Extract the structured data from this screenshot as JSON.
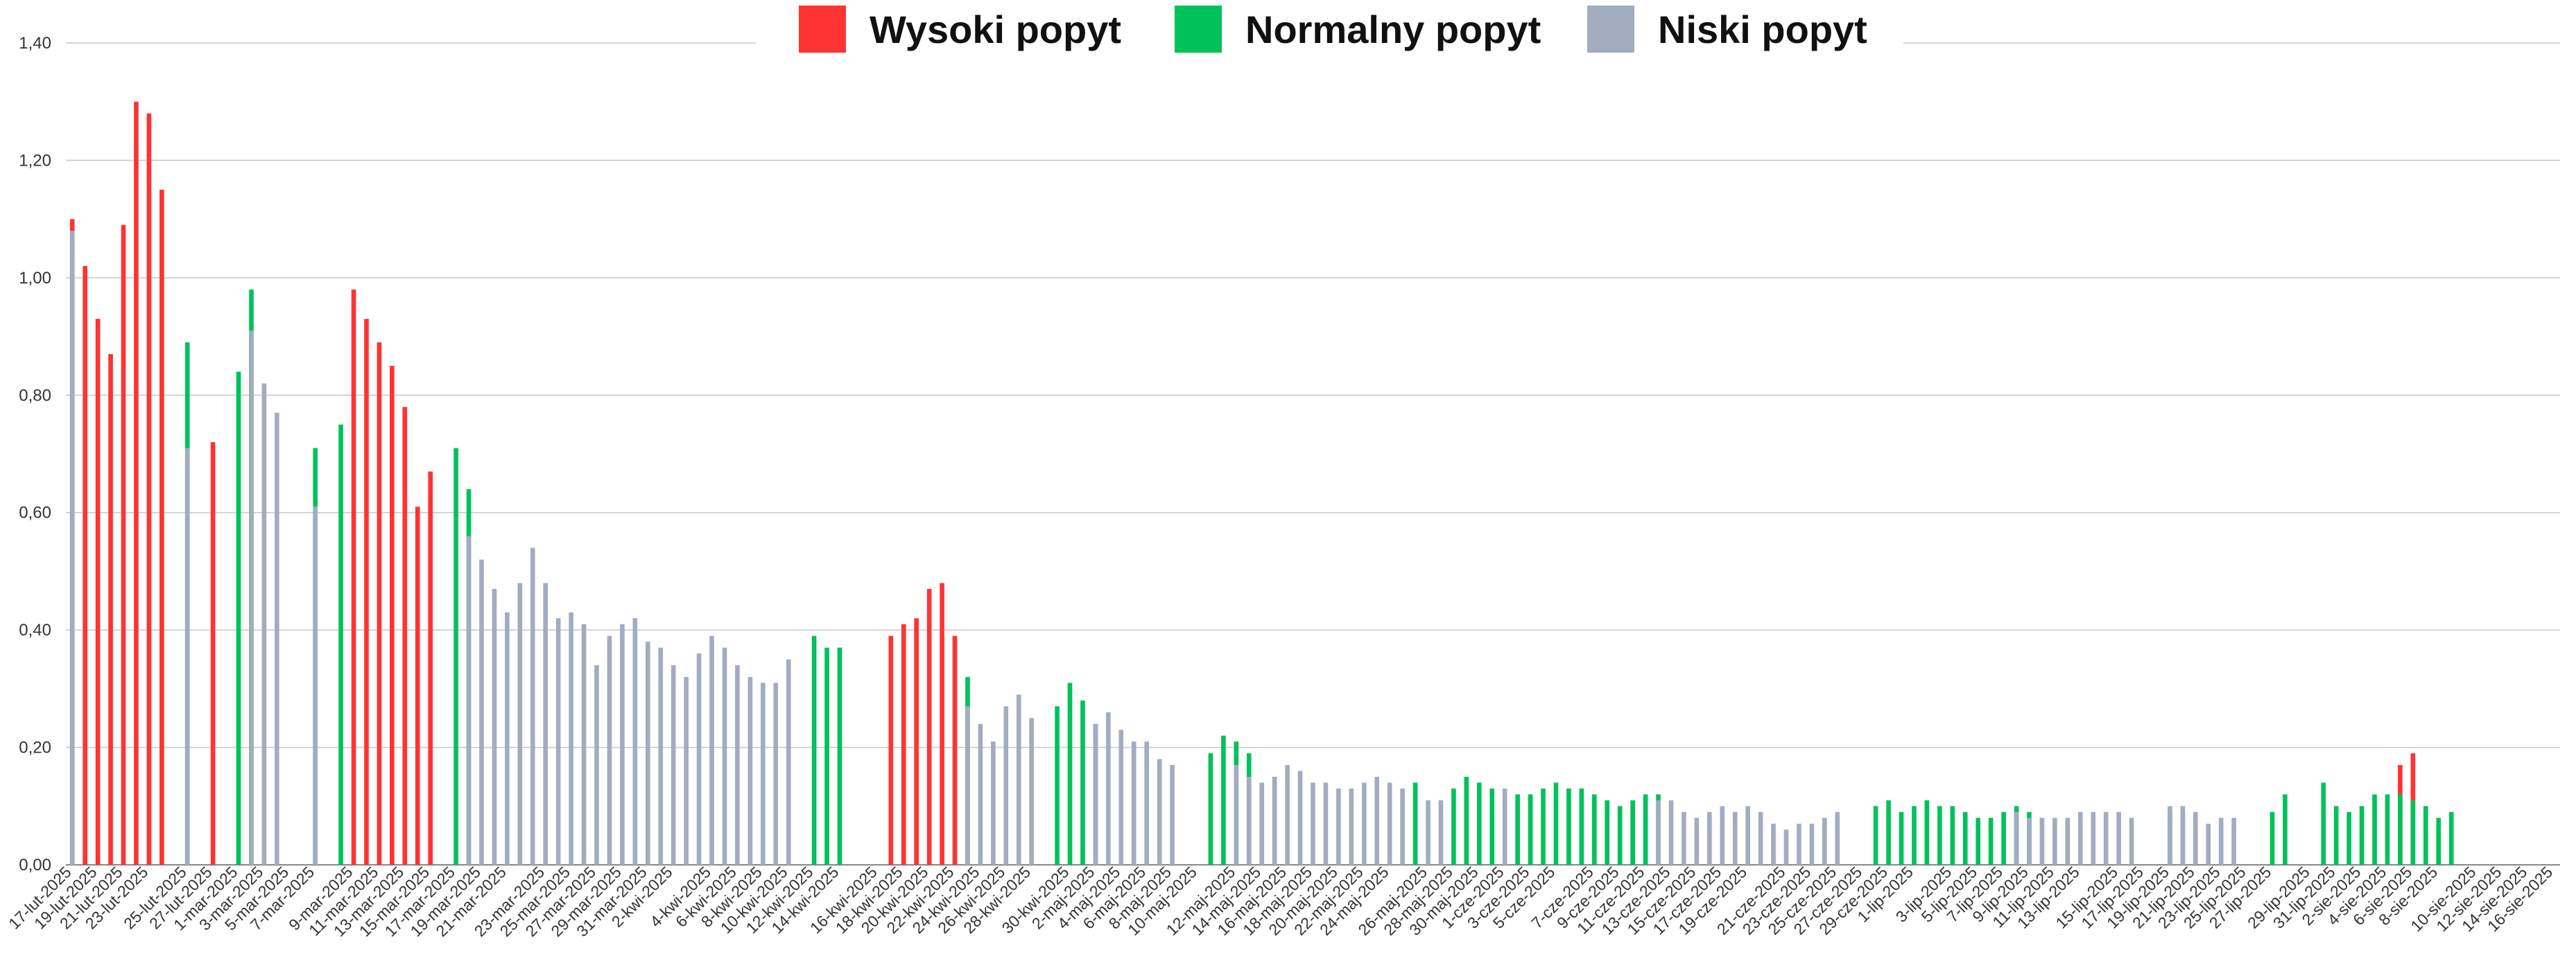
{
  "colors": {
    "high": "#FF3333",
    "normal": "#00C25A",
    "low": "#A2ACC1",
    "grid": "#C8C8C8",
    "axis": "#888888"
  },
  "legend": [
    {
      "key": "high",
      "label": "Wysoki popyt"
    },
    {
      "key": "normal",
      "label": "Normalny popyt"
    },
    {
      "key": "low",
      "label": "Niski popyt"
    }
  ],
  "chart_data": {
    "type": "bar",
    "legend_position": "top-center",
    "grid": true,
    "ylim": [
      0,
      1.4
    ],
    "yticks": [
      "0,00",
      "0,20",
      "0,40",
      "0,60",
      "0,80",
      "1,00",
      "1,20",
      "1,40"
    ],
    "xtick_labels": [
      "17-lut-2025",
      "19-lut-2025",
      "21-lut-2025",
      "23-lut-2025",
      "25-lut-2025",
      "27-lut-2025",
      "1-mar-2025",
      "3-mar-2025",
      "5-mar-2025",
      "7-mar-2025",
      "9-mar-2025",
      "11-mar-2025",
      "13-mar-2025",
      "15-mar-2025",
      "17-mar-2025",
      "19-mar-2025",
      "21-mar-2025",
      "23-mar-2025",
      "25-mar-2025",
      "27-mar-2025",
      "29-mar-2025",
      "31-mar-2025",
      "2-kwi-2025",
      "4-kwi-2025",
      "6-kwi-2025",
      "8-kwi-2025",
      "10-kwi-2025",
      "12-kwi-2025",
      "14-kwi-2025",
      "16-kwi-2025",
      "18-kwi-2025",
      "20-kwi-2025",
      "22-kwi-2025",
      "24-kwi-2025",
      "26-kwi-2025",
      "28-kwi-2025",
      "30-kwi-2025",
      "2-maj-2025",
      "4-maj-2025",
      "6-maj-2025",
      "8-maj-2025",
      "10-maj-2025",
      "12-maj-2025",
      "14-maj-2025",
      "16-maj-2025",
      "18-maj-2025",
      "20-maj-2025",
      "22-maj-2025",
      "24-maj-2025",
      "26-maj-2025",
      "28-maj-2025",
      "30-maj-2025",
      "1-cze-2025",
      "3-cze-2025",
      "5-cze-2025",
      "7-cze-2025",
      "9-cze-2025",
      "11-cze-2025",
      "13-cze-2025",
      "15-cze-2025",
      "17-cze-2025",
      "19-cze-2025",
      "21-cze-2025",
      "23-cze-2025",
      "25-cze-2025",
      "27-cze-2025",
      "29-cze-2025",
      "1-lip-2025",
      "3-lip-2025",
      "5-lip-2025",
      "7-lip-2025",
      "9-lip-2025",
      "11-lip-2025",
      "13-lip-2025",
      "15-lip-2025",
      "17-lip-2025",
      "19-lip-2025",
      "21-lip-2025",
      "23-lip-2025",
      "25-lip-2025",
      "27-lip-2025",
      "29-lip-2025",
      "31-lip-2025",
      "2-sie-2025",
      "4-sie-2025",
      "6-sie-2025",
      "8-sie-2025",
      "10-sie-2025",
      "12-sie-2025",
      "14-sie-2025",
      "16-sie-2025"
    ],
    "series": [
      {
        "key": "high",
        "name": "Wysoki popyt",
        "values": [
          1.1,
          1.02,
          0.93,
          0.87,
          1.09,
          1.3,
          1.28,
          1.15,
          null,
          null,
          null,
          0.72,
          null,
          null,
          null,
          null,
          null,
          null,
          null,
          null,
          null,
          null,
          0.98,
          0.93,
          0.89,
          0.85,
          0.78,
          0.61,
          0.67,
          null,
          null,
          null,
          null,
          null,
          null,
          null,
          null,
          null,
          null,
          null,
          null,
          null,
          null,
          null,
          null,
          null,
          null,
          null,
          null,
          null,
          null,
          null,
          null,
          null,
          null,
          null,
          null,
          null,
          null,
          null,
          null,
          null,
          null,
          null,
          0.39,
          0.41,
          0.42,
          0.47,
          0.48,
          0.39,
          null,
          null,
          null,
          null,
          null,
          null,
          null,
          null,
          null,
          null,
          null,
          null,
          null,
          null,
          null,
          null,
          null,
          null,
          null,
          null,
          null,
          null,
          null,
          null,
          null,
          null,
          null,
          null,
          null,
          null,
          null,
          null,
          null,
          null,
          null,
          null,
          null,
          null,
          null,
          null,
          null,
          null,
          null,
          null,
          null,
          null,
          null,
          null,
          null,
          null,
          null,
          null,
          null,
          null,
          null,
          null,
          null,
          null,
          null,
          null,
          null,
          null,
          null,
          null,
          null,
          null,
          null,
          null,
          null,
          null,
          null,
          null,
          null,
          null,
          null,
          null,
          null,
          null,
          null,
          null,
          null,
          null,
          null,
          null,
          null,
          null,
          null,
          null,
          null,
          null,
          null,
          null,
          null,
          null,
          null,
          null,
          null,
          null,
          null,
          null,
          null,
          null,
          null,
          null,
          null,
          null,
          null,
          null,
          null,
          null,
          null,
          null,
          0.17,
          0.19,
          null,
          null,
          null,
          null,
          null,
          null,
          null,
          null,
          null,
          null,
          null
        ]
      },
      {
        "key": "normal",
        "name": "Normalny popyt",
        "values": [
          null,
          null,
          null,
          null,
          null,
          null,
          null,
          null,
          null,
          0.89,
          null,
          null,
          null,
          0.84,
          0.98,
          null,
          null,
          null,
          null,
          0.71,
          null,
          0.75,
          null,
          null,
          null,
          null,
          null,
          null,
          null,
          null,
          0.71,
          0.64,
          null,
          null,
          null,
          null,
          null,
          null,
          null,
          null,
          null,
          null,
          null,
          null,
          null,
          null,
          null,
          null,
          null,
          null,
          null,
          null,
          null,
          null,
          null,
          null,
          null,
          null,
          0.39,
          0.37,
          0.37,
          null,
          null,
          null,
          null,
          null,
          null,
          null,
          null,
          null,
          0.32,
          null,
          null,
          null,
          null,
          null,
          null,
          0.27,
          0.31,
          0.28,
          0.24,
          null,
          null,
          null,
          null,
          null,
          null,
          null,
          null,
          0.19,
          0.22,
          0.21,
          0.19,
          null,
          null,
          null,
          null,
          null,
          null,
          null,
          null,
          null,
          null,
          null,
          null,
          0.14,
          null,
          null,
          0.13,
          0.15,
          0.14,
          0.13,
          null,
          0.12,
          0.12,
          0.13,
          0.14,
          0.13,
          0.13,
          0.12,
          0.11,
          0.1,
          0.11,
          0.12,
          0.12,
          null,
          null,
          null,
          null,
          null,
          null,
          null,
          null,
          null,
          null,
          null,
          null,
          null,
          null,
          null,
          null,
          0.1,
          0.11,
          0.09,
          0.1,
          0.11,
          0.1,
          0.1,
          0.09,
          0.08,
          0.08,
          0.09,
          0.1,
          0.09,
          null,
          null,
          null,
          null,
          null,
          null,
          null,
          null,
          null,
          null,
          0.09,
          0.09,
          null,
          null,
          null,
          null,
          null,
          null,
          0.09,
          0.12,
          null,
          null,
          0.14,
          0.1,
          0.09,
          0.1,
          0.12,
          0.12,
          0.12,
          0.11,
          0.1,
          0.08,
          0.09
        ]
      },
      {
        "key": "low",
        "name": "Niski popyt",
        "values": [
          1.08,
          null,
          null,
          null,
          null,
          null,
          null,
          null,
          null,
          0.71,
          null,
          null,
          null,
          null,
          0.91,
          0.82,
          0.77,
          null,
          null,
          0.61,
          null,
          null,
          null,
          null,
          null,
          null,
          null,
          null,
          null,
          null,
          null,
          0.56,
          0.52,
          0.47,
          0.43,
          0.48,
          0.54,
          0.48,
          0.42,
          0.43,
          0.41,
          0.34,
          0.39,
          0.41,
          0.42,
          0.38,
          0.37,
          0.34,
          0.32,
          0.36,
          0.39,
          0.37,
          0.34,
          0.32,
          0.31,
          0.31,
          0.35,
          null,
          null,
          null,
          null,
          null,
          null,
          null,
          null,
          null,
          null,
          null,
          null,
          null,
          0.27,
          0.24,
          0.21,
          0.27,
          0.29,
          0.25,
          null,
          null,
          null,
          null,
          0.24,
          0.26,
          0.23,
          0.21,
          0.21,
          0.18,
          0.17,
          null,
          null,
          null,
          null,
          0.17,
          0.15,
          0.14,
          0.15,
          0.17,
          0.16,
          0.14,
          0.14,
          0.13,
          0.13,
          0.14,
          0.15,
          0.14,
          0.13,
          null,
          0.11,
          0.11,
          null,
          null,
          null,
          null,
          0.13,
          null,
          null,
          null,
          null,
          null,
          null,
          null,
          null,
          null,
          null,
          null,
          0.11,
          0.11,
          0.09,
          0.08,
          0.09,
          0.1,
          0.09,
          0.1,
          0.09,
          0.07,
          0.06,
          0.07,
          0.07,
          0.08,
          0.09,
          null,
          null,
          null,
          null,
          null,
          null,
          null,
          null,
          null,
          null,
          null,
          null,
          null,
          0.09,
          0.08,
          0.08,
          0.08,
          0.08,
          0.09,
          0.09,
          0.09,
          0.09,
          0.08,
          null,
          null,
          0.1,
          0.1,
          0.09,
          0.07,
          0.08,
          0.08,
          null,
          null,
          null,
          null,
          null,
          null,
          null,
          null,
          null,
          null,
          null,
          null,
          null,
          null
        ]
      }
    ]
  }
}
